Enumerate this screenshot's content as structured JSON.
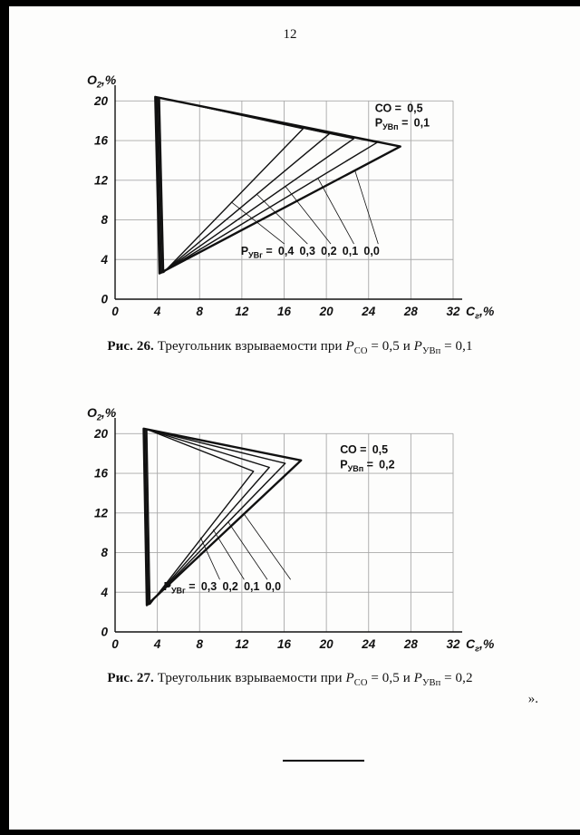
{
  "page": {
    "number": "12",
    "trailing_mark": "»."
  },
  "captions": [
    {
      "label": "Рис. 26.",
      "body": " Треугольник взрываемости при ",
      "var1": "Р",
      "sub1": "СО",
      "mid": " = 0,5 и ",
      "var2": "Р",
      "sub2": "УВп",
      "end": " = 0,1"
    },
    {
      "label": "Рис. 27.",
      "body": " Треугольник взрываемости при ",
      "var1": "Р",
      "sub1": "СО",
      "mid": " = 0,5 и ",
      "var2": "Р",
      "sub2": "УВп",
      "end": " = 0,2"
    }
  ],
  "chart_data": [
    {
      "type": "line",
      "title": "Рис. 26. Треугольник взрываемости при РСО = 0,5 и РУВп = 0,1",
      "xlabel_parts": [
        {
          "t": "С"
        },
        {
          "t": "г",
          "sub": true
        },
        {
          "t": ",%"
        }
      ],
      "ylabel_parts": [
        {
          "t": "О"
        },
        {
          "t": "2",
          "sub": true
        },
        {
          "t": ",%"
        }
      ],
      "x_ticks": [
        0,
        4,
        8,
        12,
        16,
        20,
        24,
        28,
        32
      ],
      "y_ticks": [
        0,
        4,
        8,
        12,
        16,
        20
      ],
      "xlim": [
        0,
        32
      ],
      "ylim": [
        0,
        20
      ],
      "grid": true,
      "legend": "none",
      "annotations": [
        {
          "x": 24.6,
          "y": 18.9,
          "parts": [
            {
              "t": "СО  = 0,5"
            }
          ]
        },
        {
          "x": 24.6,
          "y": 17.4,
          "parts": [
            {
              "t": "Р"
            },
            {
              "t": "УВп",
              "sub": true
            },
            {
              "t": " = 0,1"
            }
          ]
        },
        {
          "x": 11.9,
          "y": 4.5,
          "parts": [
            {
              "t": "Р"
            },
            {
              "t": "УВг",
              "sub": true
            },
            {
              "t": " = 0,4 0,3 0,2 0,1 0,0"
            }
          ]
        }
      ],
      "series": [
        {
          "name": "triangle-puvg-0-0",
          "w": 2.4,
          "pts": [
            [
              3.8,
              20.4
            ],
            [
              27.0,
              15.4
            ],
            [
              4.2,
              2.6
            ],
            [
              3.8,
              20.4
            ]
          ]
        },
        {
          "name": "triangle-puvg-0-1",
          "w": 1.4,
          "pts": [
            [
              3.9,
              20.4
            ],
            [
              24.8,
              15.8
            ],
            [
              4.3,
              2.62
            ],
            [
              3.9,
              20.4
            ]
          ]
        },
        {
          "name": "triangle-puvg-0-2",
          "w": 1.4,
          "pts": [
            [
              4.0,
              20.38
            ],
            [
              22.6,
              16.2
            ],
            [
              4.4,
              2.65
            ],
            [
              4.0,
              20.38
            ]
          ]
        },
        {
          "name": "triangle-puvg-0-3",
          "w": 1.4,
          "pts": [
            [
              4.1,
              20.36
            ],
            [
              20.3,
              16.7
            ],
            [
              4.5,
              2.68
            ],
            [
              4.1,
              20.36
            ]
          ]
        },
        {
          "name": "triangle-puvg-0-4",
          "w": 1.4,
          "pts": [
            [
              4.2,
              20.34
            ],
            [
              17.8,
              17.2
            ],
            [
              4.6,
              2.7
            ],
            [
              4.2,
              20.34
            ]
          ]
        },
        {
          "name": "leader-0-4",
          "w": 0.8,
          "pts": [
            [
              16.0,
              5.6
            ],
            [
              11.0,
              9.8
            ]
          ]
        },
        {
          "name": "leader-0-3",
          "w": 0.8,
          "pts": [
            [
              18.2,
              5.6
            ],
            [
              13.4,
              10.6
            ]
          ]
        },
        {
          "name": "leader-0-2",
          "w": 0.8,
          "pts": [
            [
              20.4,
              5.6
            ],
            [
              16.1,
              11.4
            ]
          ]
        },
        {
          "name": "leader-0-1",
          "w": 0.8,
          "pts": [
            [
              22.6,
              5.6
            ],
            [
              19.2,
              12.2
            ]
          ]
        },
        {
          "name": "leader-0-0",
          "w": 0.8,
          "pts": [
            [
              24.9,
              5.6
            ],
            [
              22.7,
              13.0
            ]
          ]
        }
      ]
    },
    {
      "type": "line",
      "title": "Рис. 27. Треугольник взрываемости при РСО = 0,5 и РУВп = 0,2",
      "xlabel_parts": [
        {
          "t": "С"
        },
        {
          "t": "г",
          "sub": true
        },
        {
          "t": ",%"
        }
      ],
      "ylabel_parts": [
        {
          "t": "О"
        },
        {
          "t": "2",
          "sub": true
        },
        {
          "t": ",%"
        }
      ],
      "x_ticks": [
        0,
        4,
        8,
        12,
        16,
        20,
        24,
        28,
        32
      ],
      "y_ticks": [
        0,
        4,
        8,
        12,
        16,
        20
      ],
      "xlim": [
        0,
        32
      ],
      "ylim": [
        0,
        20
      ],
      "grid": true,
      "legend": "none",
      "annotations": [
        {
          "x": 21.3,
          "y": 18.0,
          "parts": [
            {
              "t": "СО  = 0,5"
            }
          ]
        },
        {
          "x": 21.3,
          "y": 16.5,
          "parts": [
            {
              "t": "Р"
            },
            {
              "t": "УВп",
              "sub": true
            },
            {
              "t": " = 0,2"
            }
          ]
        },
        {
          "x": 4.6,
          "y": 4.2,
          "parts": [
            {
              "t": "Р"
            },
            {
              "t": "УВг",
              "sub": true
            },
            {
              "t": " = 0,3 0,2 0,1 0,0"
            }
          ]
        }
      ],
      "series": [
        {
          "name": "triangle-puvg-0-0",
          "w": 2.4,
          "pts": [
            [
              2.7,
              20.5
            ],
            [
              17.6,
              17.3
            ],
            [
              3.0,
              2.7
            ],
            [
              2.7,
              20.5
            ]
          ]
        },
        {
          "name": "triangle-puvg-0-1",
          "w": 1.4,
          "pts": [
            [
              2.8,
              20.48
            ],
            [
              16.1,
              17.0
            ],
            [
              3.1,
              2.73
            ],
            [
              2.8,
              20.48
            ]
          ]
        },
        {
          "name": "triangle-puvg-0-2",
          "w": 1.4,
          "pts": [
            [
              2.9,
              20.46
            ],
            [
              14.6,
              16.6
            ],
            [
              3.2,
              2.76
            ],
            [
              2.9,
              20.46
            ]
          ]
        },
        {
          "name": "triangle-puvg-0-3",
          "w": 1.4,
          "pts": [
            [
              3.0,
              20.44
            ],
            [
              13.1,
              16.2
            ],
            [
              3.3,
              2.8
            ],
            [
              3.0,
              20.44
            ]
          ]
        },
        {
          "name": "leader-0-3",
          "w": 0.8,
          "pts": [
            [
              9.9,
              5.3
            ],
            [
              8.1,
              9.5
            ]
          ]
        },
        {
          "name": "leader-0-2",
          "w": 0.8,
          "pts": [
            [
              12.2,
              5.3
            ],
            [
              9.3,
              10.3
            ]
          ]
        },
        {
          "name": "leader-0-1",
          "w": 0.8,
          "pts": [
            [
              14.4,
              5.3
            ],
            [
              10.7,
              11.1
            ]
          ]
        },
        {
          "name": "leader-0-0",
          "w": 0.8,
          "pts": [
            [
              16.6,
              5.3
            ],
            [
              12.2,
              11.9
            ]
          ]
        }
      ]
    }
  ]
}
